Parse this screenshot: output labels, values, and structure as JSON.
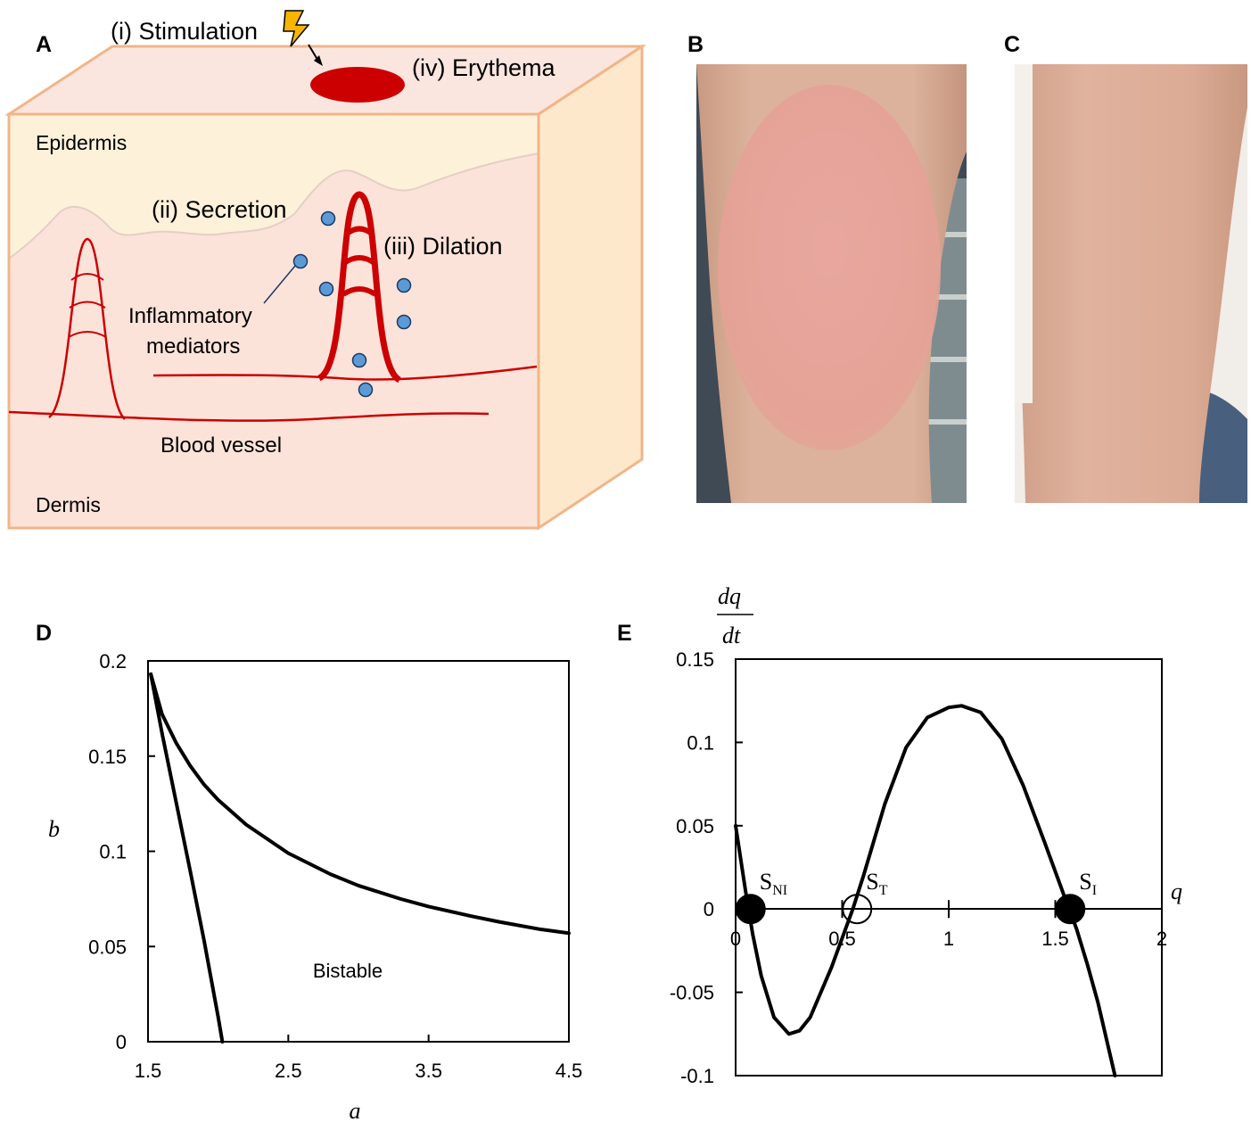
{
  "panels": {
    "A": {
      "letter": "A",
      "stimulation": "(i) Stimulation",
      "erythema": "(iv) Erythema",
      "epidermis": "Epidermis",
      "secretion": "(ii) Secretion",
      "dilation": "(iii) Dilation",
      "mediators_line1": "Inflammatory",
      "mediators_line2": "mediators",
      "blood_vessel": "Blood vessel",
      "dermis": "Dermis",
      "colors": {
        "box_face": "#fbe3d9",
        "box_top": "#fbe6df",
        "epidermis": "#fdf1d9",
        "border": "#f1b588",
        "vessel": "#cc0000",
        "mediator": "#5b9bd5"
      }
    },
    "B": {
      "letter": "B",
      "photo": "forearm skin with erythema patch"
    },
    "C": {
      "letter": "C",
      "photo": "forearm skin without erythema"
    }
  },
  "chart_data": [
    {
      "panel_letter": "D",
      "type": "line",
      "xlabel": "a",
      "ylabel": "b",
      "xlim": [
        1.5,
        4.5
      ],
      "ylim": [
        0,
        0.2
      ],
      "xticks": [
        "1.5",
        "2.5",
        "3.5",
        "4.5"
      ],
      "yticks": [
        "0",
        "0.05",
        "0.1",
        "0.15",
        "0.2"
      ],
      "annotation": "Bistable",
      "series": [
        {
          "x": [
            1.52,
            1.6,
            1.7,
            1.8,
            1.9,
            2.0,
            2.2,
            2.5,
            2.8,
            3.0,
            3.3,
            3.5,
            3.8,
            4.0,
            4.3,
            4.5
          ],
          "y": [
            0.193,
            0.172,
            0.157,
            0.145,
            0.135,
            0.127,
            0.114,
            0.099,
            0.088,
            0.082,
            0.075,
            0.071,
            0.066,
            0.063,
            0.059,
            0.057
          ]
        },
        {
          "x": [
            1.52,
            1.6,
            1.7,
            1.8,
            1.9,
            2.0,
            2.03
          ],
          "y": [
            0.193,
            0.162,
            0.126,
            0.09,
            0.053,
            0.013,
            0.0
          ]
        }
      ]
    },
    {
      "panel_letter": "E",
      "type": "line",
      "xlabel": "q",
      "ylabel_num": "dq",
      "ylabel_den": "dt",
      "xlim": [
        0,
        2
      ],
      "ylim": [
        -0.1,
        0.15
      ],
      "xticks": [
        "0",
        "0.5",
        "1",
        "1.5",
        "2"
      ],
      "yticks": [
        "-0.1",
        "-0.05",
        "0",
        "0.05",
        "0.1",
        "0.15"
      ],
      "series": [
        {
          "x": [
            0.0,
            0.05,
            0.08,
            0.12,
            0.18,
            0.25,
            0.3,
            0.35,
            0.45,
            0.55,
            0.6,
            0.7,
            0.8,
            0.9,
            1.0,
            1.06,
            1.15,
            1.25,
            1.35,
            1.45,
            1.55,
            1.6,
            1.65,
            1.7,
            1.78
          ],
          "y": [
            0.05,
            0.008,
            -0.015,
            -0.04,
            -0.065,
            -0.075,
            -0.073,
            -0.065,
            -0.035,
            0.0,
            0.02,
            0.063,
            0.097,
            0.115,
            0.121,
            0.122,
            0.118,
            0.102,
            0.074,
            0.04,
            0.005,
            -0.012,
            -0.033,
            -0.056,
            -0.1
          ]
        }
      ],
      "points": [
        {
          "label_main": "S",
          "label_sub": "NI",
          "x": 0.07,
          "y": 0,
          "filled": true
        },
        {
          "label_main": "S",
          "label_sub": "T",
          "x": 0.57,
          "y": 0,
          "filled": false
        },
        {
          "label_main": "S",
          "label_sub": "I",
          "x": 1.57,
          "y": 0,
          "filled": true
        }
      ]
    }
  ]
}
